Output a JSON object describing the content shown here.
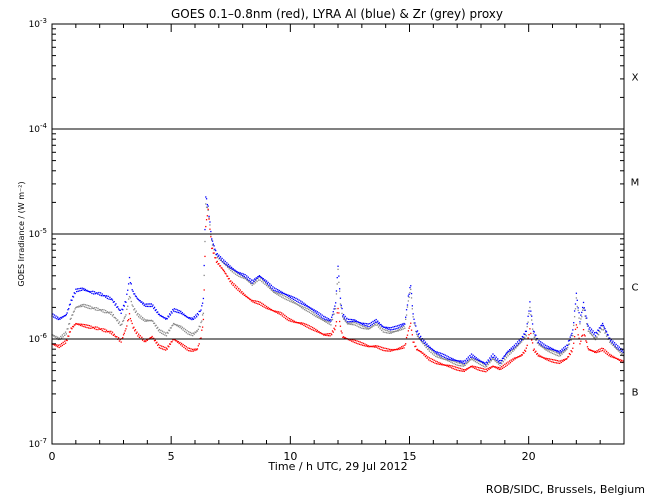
{
  "chart_data": {
    "type": "scatter",
    "title": "GOES 0.1–0.8nm (red), LYRA Al (blue) & Zr (grey) proxy",
    "xlabel": "Time / h UTC, 29 Jul 2012",
    "ylabel": "GOES Irradiance / (W m⁻²)",
    "credit": "ROB/SIDC, Brussels, Belgium",
    "xlim": [
      0,
      24
    ],
    "ylim": [
      1e-07,
      0.001
    ],
    "yscale": "log",
    "x_ticks": [
      0,
      5,
      10,
      15,
      20
    ],
    "x_tick_labels": [
      "0",
      "5",
      "10",
      "15",
      "20"
    ],
    "y_ticks": [
      1e-07,
      1e-06,
      1e-05,
      0.0001,
      0.001
    ],
    "y_tick_labels": [
      {
        "base": "10",
        "exp": "-7"
      },
      {
        "base": "10",
        "exp": "-6"
      },
      {
        "base": "10",
        "exp": "-5"
      },
      {
        "base": "10",
        "exp": "-4"
      },
      {
        "base": "10",
        "exp": "-3"
      }
    ],
    "reference_lines": [
      1e-06,
      1e-05,
      0.0001
    ],
    "flare_classes": [
      {
        "label": "B",
        "value": 3.16e-07
      },
      {
        "label": "C",
        "value": 3.16e-06
      },
      {
        "label": "M",
        "value": 3.16e-05
      },
      {
        "label": "X",
        "value": 0.000316
      }
    ],
    "series": [
      {
        "name": "GOES 0.1–0.8nm",
        "color": "#ff0000",
        "x": [
          0.0,
          0.3,
          0.6,
          0.8,
          1.0,
          1.3,
          1.6,
          2.0,
          2.5,
          2.9,
          3.1,
          3.25,
          3.4,
          3.6,
          3.9,
          4.2,
          4.5,
          4.8,
          5.1,
          5.4,
          5.7,
          5.9,
          6.1,
          6.25,
          6.35,
          6.45,
          6.55,
          6.7,
          6.9,
          7.2,
          7.5,
          7.8,
          8.1,
          8.4,
          8.7,
          9.0,
          9.3,
          9.6,
          9.9,
          10.2,
          10.5,
          10.8,
          11.1,
          11.4,
          11.7,
          11.9,
          12.0,
          12.1,
          12.2,
          12.4,
          12.7,
          13.0,
          13.3,
          13.6,
          13.9,
          14.2,
          14.5,
          14.8,
          14.95,
          15.05,
          15.15,
          15.3,
          15.5,
          15.8,
          16.1,
          16.4,
          16.7,
          17.0,
          17.3,
          17.6,
          17.9,
          18.2,
          18.5,
          18.8,
          19.1,
          19.4,
          19.7,
          19.9,
          20.05,
          20.2,
          20.4,
          20.7,
          21.0,
          21.3,
          21.6,
          21.85,
          22.0,
          22.15,
          22.3,
          22.5,
          22.8,
          23.1,
          23.4,
          23.7,
          24.0
        ],
        "y": [
          9e-07,
          8.5e-07,
          9.5e-07,
          1.25e-06,
          1.4e-06,
          1.35e-06,
          1.3e-06,
          1.25e-06,
          1.15e-06,
          9.5e-07,
          1.25e-06,
          1.7e-06,
          1.3e-06,
          1.1e-06,
          9.5e-07,
          1.05e-06,
          8.5e-07,
          8e-07,
          1e-06,
          9e-07,
          8e-07,
          7.8e-07,
          8e-07,
          1.05e-06,
          1.5e-06,
          1.2e-05,
          1.7e-05,
          7.5e-06,
          5.5e-06,
          4.5e-06,
          3.5e-06,
          3e-06,
          2.6e-06,
          2.3e-06,
          2.2e-06,
          2e-06,
          1.85e-06,
          1.75e-06,
          1.55e-06,
          1.45e-06,
          1.4e-06,
          1.3e-06,
          1.2e-06,
          1.1e-06,
          1.1e-06,
          1.3e-06,
          2e-06,
          1.3e-06,
          1.05e-06,
          1e-06,
          9.5e-07,
          9e-07,
          8.5e-07,
          8.5e-07,
          8e-07,
          7.8e-07,
          8e-07,
          8.5e-07,
          1.2e-06,
          1.4e-06,
          9.5e-07,
          8e-07,
          7.5e-07,
          6.5e-07,
          6e-07,
          5.7e-07,
          5.5e-07,
          5.2e-07,
          5e-07,
          5.5e-07,
          5.2e-07,
          5e-07,
          5.5e-07,
          5.2e-07,
          5.8e-07,
          6.5e-07,
          7e-07,
          8e-07,
          1.25e-06,
          8e-07,
          7e-07,
          6.5e-07,
          6.2e-07,
          6e-07,
          6.5e-07,
          8e-07,
          1.4e-06,
          9e-07,
          1.2e-06,
          8e-07,
          7.5e-07,
          8e-07,
          7e-07,
          6.5e-07,
          6e-07
        ]
      },
      {
        "name": "LYRA Al",
        "color": "#0000ff",
        "x": [
          0.0,
          0.3,
          0.6,
          0.8,
          1.0,
          1.3,
          1.6,
          2.0,
          2.5,
          2.9,
          3.1,
          3.25,
          3.4,
          3.6,
          3.9,
          4.2,
          4.5,
          4.8,
          5.1,
          5.4,
          5.7,
          5.9,
          6.1,
          6.25,
          6.35,
          6.45,
          6.55,
          6.7,
          6.9,
          7.2,
          7.5,
          7.8,
          8.1,
          8.4,
          8.7,
          9.0,
          9.3,
          9.6,
          9.9,
          10.2,
          10.5,
          10.8,
          11.1,
          11.4,
          11.7,
          11.9,
          12.0,
          12.1,
          12.2,
          12.4,
          12.7,
          13.0,
          13.3,
          13.6,
          13.9,
          14.2,
          14.5,
          14.8,
          14.95,
          15.05,
          15.15,
          15.3,
          15.5,
          15.8,
          16.1,
          16.4,
          16.7,
          17.0,
          17.3,
          17.6,
          17.9,
          18.2,
          18.5,
          18.8,
          19.1,
          19.4,
          19.7,
          19.9,
          20.05,
          20.2,
          20.4,
          20.7,
          21.0,
          21.3,
          21.6,
          21.85,
          22.0,
          22.15,
          22.3,
          22.5,
          22.8,
          23.1,
          23.4,
          23.7,
          24.0
        ],
        "y": [
          1.7e-06,
          1.55e-06,
          1.7e-06,
          2.3e-06,
          2.9e-06,
          3e-06,
          2.8e-06,
          2.7e-06,
          2.4e-06,
          1.8e-06,
          2.3e-06,
          3.8e-06,
          2.8e-06,
          2.4e-06,
          2.1e-06,
          2.1e-06,
          1.7e-06,
          1.55e-06,
          1.9e-06,
          1.8e-06,
          1.6e-06,
          1.55e-06,
          1.7e-06,
          1.9e-06,
          2.4e-06,
          2.3e-05,
          1.8e-05,
          9e-06,
          6.5e-06,
          5.5e-06,
          4.8e-06,
          4.3e-06,
          4e-06,
          3.5e-06,
          4e-06,
          3.5e-06,
          3e-06,
          2.8e-06,
          2.6e-06,
          2.4e-06,
          2.2e-06,
          2e-06,
          1.8e-06,
          1.6e-06,
          1.5e-06,
          2.2e-06,
          5e-06,
          2.4e-06,
          1.7e-06,
          1.5e-06,
          1.5e-06,
          1.4e-06,
          1.35e-06,
          1.5e-06,
          1.3e-06,
          1.25e-06,
          1.3e-06,
          1.4e-06,
          2.5e-06,
          3.3e-06,
          1.7e-06,
          1.2e-06,
          1e-06,
          8.5e-07,
          7.5e-07,
          7e-07,
          6.5e-07,
          6.2e-07,
          6e-07,
          7e-07,
          6.3e-07,
          5.8e-07,
          7e-07,
          6e-07,
          7.5e-07,
          8.5e-07,
          1e-06,
          1.2e-06,
          2.2e-06,
          1.2e-06,
          9.5e-07,
          8.5e-07,
          8e-07,
          7.5e-07,
          8.5e-07,
          1.2e-06,
          2.7e-06,
          1.5e-06,
          2.2e-06,
          1.3e-06,
          1.1e-06,
          1.4e-06,
          1e-06,
          8.5e-07,
          7.5e-07
        ]
      },
      {
        "name": "LYRA Zr",
        "color": "#888888",
        "x": [
          0.0,
          0.3,
          0.6,
          0.8,
          1.0,
          1.3,
          1.6,
          2.0,
          2.5,
          2.9,
          3.1,
          3.25,
          3.4,
          3.6,
          3.9,
          4.2,
          4.5,
          4.8,
          5.1,
          5.4,
          5.7,
          5.9,
          6.1,
          6.25,
          6.35,
          6.45,
          6.55,
          6.7,
          6.9,
          7.2,
          7.5,
          7.8,
          8.1,
          8.4,
          8.7,
          9.0,
          9.3,
          9.6,
          9.9,
          10.2,
          10.5,
          10.8,
          11.1,
          11.4,
          11.7,
          11.9,
          12.0,
          12.1,
          12.2,
          12.4,
          12.7,
          13.0,
          13.3,
          13.6,
          13.9,
          14.2,
          14.5,
          14.8,
          14.95,
          15.05,
          15.15,
          15.3,
          15.5,
          15.8,
          16.1,
          16.4,
          16.7,
          17.0,
          17.3,
          17.6,
          17.9,
          18.2,
          18.5,
          18.8,
          19.1,
          19.4,
          19.7,
          19.9,
          20.05,
          20.2,
          20.4,
          20.7,
          21.0,
          21.3,
          21.6,
          21.85,
          22.0,
          22.15,
          22.3,
          22.5,
          22.8,
          23.1,
          23.4,
          23.7,
          24.0
        ],
        "y": [
          1.1e-06,
          1e-06,
          1.15e-06,
          1.6e-06,
          2e-06,
          2.1e-06,
          2e-06,
          1.9e-06,
          1.75e-06,
          1.35e-06,
          1.7e-06,
          2.6e-06,
          2e-06,
          1.7e-06,
          1.5e-06,
          1.5e-06,
          1.2e-06,
          1.1e-06,
          1.4e-06,
          1.3e-06,
          1.15e-06,
          1.1e-06,
          1.2e-06,
          1.4e-06,
          1.8e-06,
          1.9e-05,
          1.7e-05,
          8.5e-06,
          6.2e-06,
          5.3e-06,
          4.6e-06,
          4.1e-06,
          3.8e-06,
          3.3e-06,
          3.8e-06,
          3.3e-06,
          2.8e-06,
          2.6e-06,
          2.4e-06,
          2.2e-06,
          2e-06,
          1.85e-06,
          1.65e-06,
          1.5e-06,
          1.4e-06,
          2e-06,
          4.5e-06,
          2.2e-06,
          1.6e-06,
          1.4e-06,
          1.4e-06,
          1.3e-06,
          1.25e-06,
          1.4e-06,
          1.2e-06,
          1.15e-06,
          1.2e-06,
          1.3e-06,
          2.3e-06,
          3e-06,
          1.6e-06,
          1.1e-06,
          9.5e-07,
          8e-07,
          7e-07,
          6.5e-07,
          6.2e-07,
          5.8e-07,
          5.6e-07,
          6.5e-07,
          6e-07,
          5.5e-07,
          6.5e-07,
          5.7e-07,
          7e-07,
          8e-07,
          9.5e-07,
          1.1e-06,
          2e-06,
          1.1e-06,
          9e-07,
          8e-07,
          7.5e-07,
          7e-07,
          8e-07,
          1.1e-06,
          2.4e-06,
          1.4e-06,
          2e-06,
          1.2e-06,
          1e-06,
          1.3e-06,
          9.5e-07,
          8e-07,
          7e-07
        ]
      }
    ]
  }
}
